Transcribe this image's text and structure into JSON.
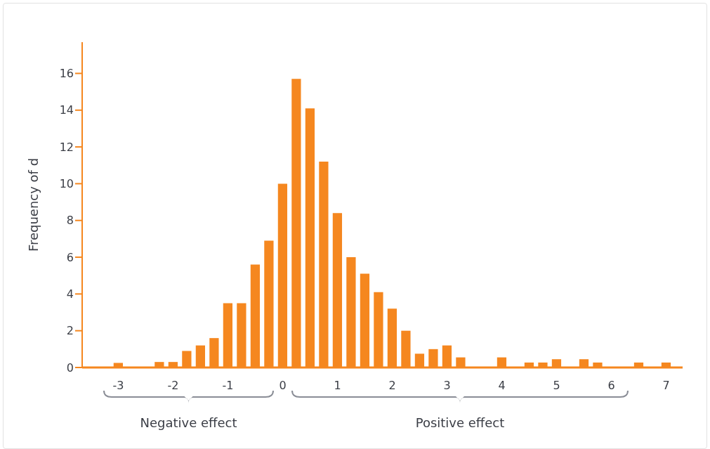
{
  "chart_data": {
    "type": "histogram",
    "ylabel": "Frequency of d",
    "bins": [
      -3.125,
      -2.875,
      -2.625,
      -2.375,
      -2.125,
      -1.875,
      -1.625,
      -1.375,
      -1.125,
      -0.875,
      -0.625,
      -0.375,
      -0.125,
      0.125,
      0.375,
      0.625,
      0.875,
      1.125,
      1.375,
      1.625,
      1.875,
      2.125,
      2.375,
      2.625,
      2.875,
      3.125,
      3.375,
      3.625,
      3.875,
      4.125,
      4.375,
      4.625,
      4.875,
      5.125,
      5.375,
      5.625,
      5.875,
      6.125,
      6.375,
      6.625,
      6.875,
      7.125
    ],
    "values": [
      0.25,
      0,
      0,
      0.3,
      0.3,
      0.9,
      1.2,
      1.6,
      3.5,
      3.5,
      5.6,
      6.9,
      10.0,
      15.7,
      14.1,
      11.2,
      8.4,
      6.0,
      5.1,
      4.1,
      3.2,
      2.0,
      0.75,
      1.0,
      1.2,
      0.55,
      0,
      0,
      0.55,
      0,
      0.27,
      0.27,
      0.45,
      0,
      0.45,
      0.27,
      0,
      0,
      0.27,
      0,
      0.27
    ],
    "color": "#f5871f",
    "xlim": [
      -3.66,
      7.3
    ],
    "xticks": [
      -3,
      -2,
      -1,
      0,
      1,
      2,
      3,
      4,
      5,
      6,
      7
    ],
    "ylim": [
      0,
      17.7
    ],
    "yticks": [
      0,
      2,
      4,
      6,
      8,
      10,
      12,
      14,
      16
    ],
    "annotations": [
      "Negative effect",
      "Positive effect"
    ]
  }
}
